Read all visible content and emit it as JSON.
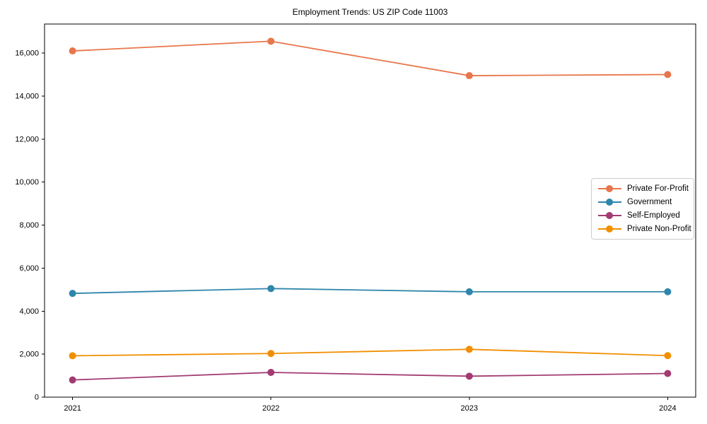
{
  "window": {
    "title": "Employment Trends: US ZIP Code 11003"
  },
  "chart_data": {
    "type": "line",
    "title": "Employment Trends: US ZIP Code 11003",
    "x": [
      2021,
      2022,
      2023,
      2024
    ],
    "x_tick_labels": [
      "2021",
      "2022",
      "2023",
      "2024"
    ],
    "series": [
      {
        "name": "Private For-Profit",
        "color": "#E8764B",
        "values": [
          16100,
          16550,
          14950,
          15000
        ]
      },
      {
        "name": "Government",
        "color": "#2E86AB",
        "values": [
          4825,
          5050,
          4900,
          4900
        ]
      },
      {
        "name": "Self-Employed",
        "color": "#A23B72",
        "values": [
          800,
          1150,
          975,
          1100
        ]
      },
      {
        "name": "Private Non-Profit",
        "color": "#F18F01",
        "values": [
          1925,
          2030,
          2225,
          1930
        ]
      }
    ],
    "xlabel": "",
    "ylabel": "",
    "ylim": [
      0,
      17350
    ],
    "yticks": [
      0,
      2000,
      4000,
      6000,
      8000,
      10000,
      12000,
      14000,
      16000
    ],
    "grid": false,
    "legend_position": "center-right-inside",
    "axis_color": "#000000",
    "text_color": "#000000",
    "background": "#ffffff"
  }
}
